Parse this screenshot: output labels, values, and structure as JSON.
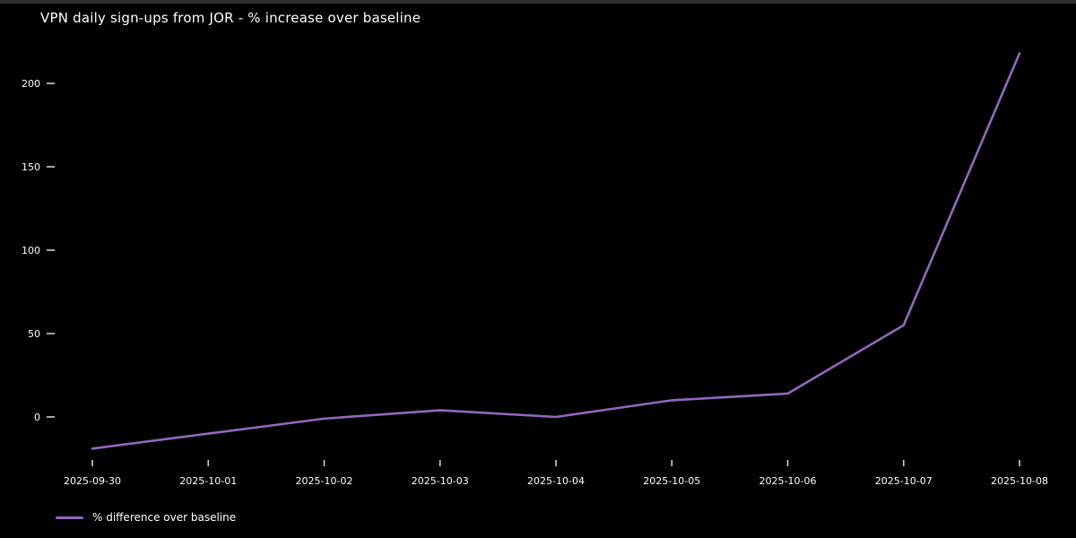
{
  "chart_data": {
    "type": "line",
    "title": "VPN daily sign-ups from JOR - % increase over baseline",
    "x_labels": [
      "2025-09-30",
      "2025-10-01",
      "2025-10-02",
      "2025-10-03",
      "2025-10-04",
      "2025-10-05",
      "2025-10-06",
      "2025-10-07",
      "2025-10-08"
    ],
    "series": [
      {
        "name": "% difference over baseline",
        "values": [
          -19,
          -10,
          -1,
          4,
          0,
          10,
          14,
          55,
          218
        ]
      }
    ],
    "y_ticks": [
      0,
      50,
      100,
      150,
      200
    ],
    "ylim": [
      -30,
      230
    ],
    "xlabel": "",
    "ylabel": "",
    "grid": false,
    "legend_position": "below-axis-lower-left",
    "colors": {
      "line": "#9467bd",
      "background": "#000000",
      "text": "#ffffff",
      "tick_marks": "#cfcfcf"
    }
  }
}
